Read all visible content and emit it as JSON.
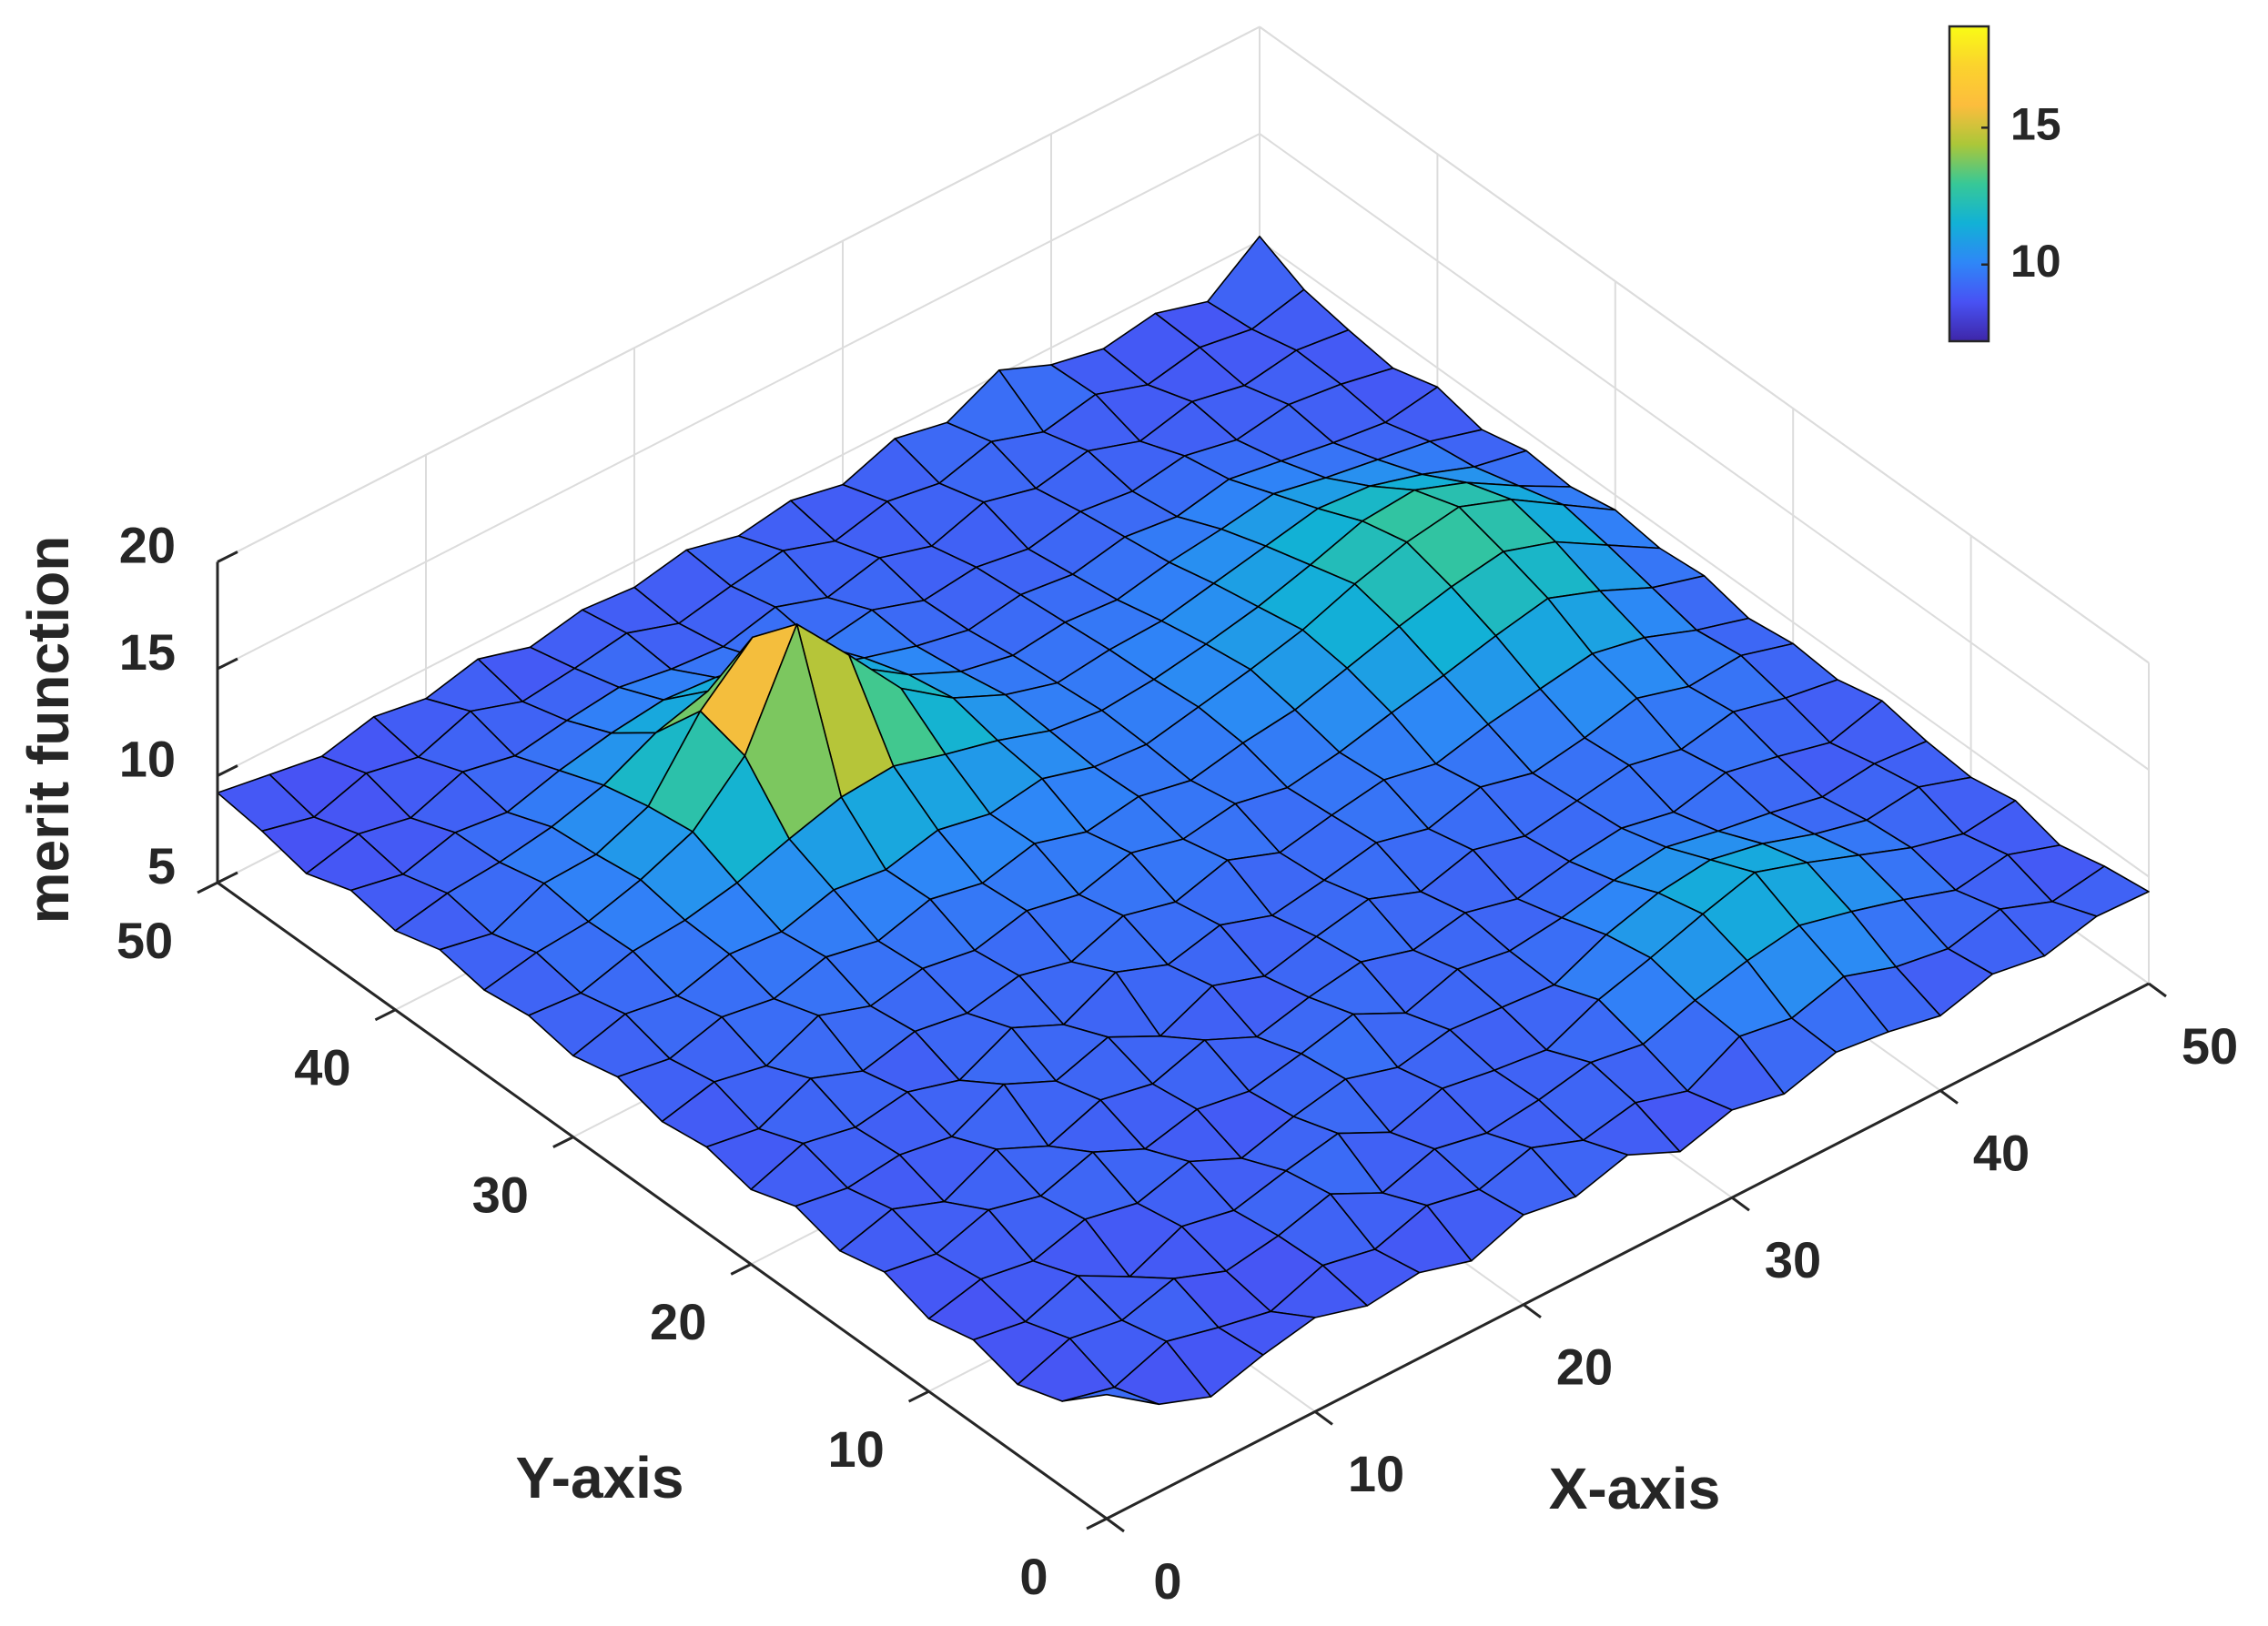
{
  "chart_data": {
    "type": "surface",
    "xlabel": "X-axis",
    "ylabel": "Y-axis",
    "zlabel": "merit function",
    "xlim": [
      0,
      50
    ],
    "ylim": [
      0,
      50
    ],
    "zlim": [
      5,
      20
    ],
    "xticks": [
      0,
      10,
      20,
      30,
      40,
      50
    ],
    "yticks": [
      0,
      10,
      20,
      30,
      40,
      50
    ],
    "zticks": [
      5,
      10,
      15,
      20
    ],
    "grid": true,
    "colormap": "parula",
    "edge_color": "#000000",
    "clim": [
      7.2,
      18.7
    ],
    "colorbar_ticks": [
      10,
      15
    ],
    "colorbar_location": "northeast",
    "x": [
      0,
      2.5,
      5,
      7.5,
      10,
      12.5,
      15,
      17.5,
      20,
      22.5,
      25,
      27.5,
      30,
      32.5,
      35,
      37.5,
      40,
      42.5,
      45,
      47.5,
      50
    ],
    "y": [
      0,
      2.5,
      5,
      7.5,
      10,
      12.5,
      15,
      17.5,
      20,
      22.5,
      25,
      27.5,
      30,
      32.5,
      35,
      37.5,
      40,
      42.5,
      45,
      47.5,
      50
    ],
    "z": [
      [
        10.8,
        9.1,
        8.2,
        8.9,
        9.4,
        8.7,
        9.0,
        8.3,
        9.2,
        8.8,
        9.5,
        8.4,
        9.1,
        8.6,
        9.3,
        9.0,
        8.5,
        9.2,
        8.8,
        9.4,
        9.3
      ],
      [
        9.0,
        8.4,
        9.3,
        8.7,
        8.2,
        9.1,
        8.6,
        9.4,
        8.9,
        9.6,
        8.7,
        9.2,
        8.5,
        9.8,
        9.4,
        10.1,
        9.3,
        8.9,
        9.5,
        8.6,
        9.0
      ],
      [
        8.3,
        9.2,
        8.8,
        9.5,
        8.6,
        9.0,
        9.7,
        8.5,
        9.3,
        8.8,
        9.1,
        9.6,
        9.2,
        10.0,
        10.6,
        11.0,
        10.4,
        9.7,
        8.9,
        9.3,
        8.5
      ],
      [
        8.9,
        8.5,
        9.4,
        8.1,
        9.2,
        8.7,
        9.3,
        9.8,
        8.6,
        9.4,
        9.0,
        8.7,
        9.8,
        10.5,
        11.3,
        12.0,
        11.2,
        10.3,
        9.4,
        8.8,
        9.1
      ],
      [
        8.4,
        9.0,
        8.6,
        9.3,
        8.8,
        9.5,
        8.4,
        9.1,
        9.6,
        8.9,
        9.4,
        9.2,
        9.0,
        10.1,
        10.8,
        11.1,
        10.6,
        9.8,
        9.2,
        9.5,
        8.7
      ],
      [
        9.1,
        8.7,
        9.5,
        8.9,
        9.7,
        8.6,
        9.2,
        8.8,
        9.3,
        9.9,
        8.7,
        9.5,
        9.1,
        9.4,
        9.9,
        10.2,
        9.7,
        9.3,
        8.8,
        9.1,
        8.9
      ],
      [
        8.6,
        9.3,
        8.4,
        9.6,
        8.5,
        9.4,
        8.9,
        9.7,
        8.6,
        9.2,
        9.6,
        8.9,
        9.4,
        8.8,
        9.3,
        9.6,
        9.1,
        9.7,
        9.2,
        8.6,
        9.3
      ],
      [
        9.2,
        8.8,
        9.1,
        8.7,
        9.9,
        8.8,
        9.6,
        8.4,
        9.5,
        8.7,
        9.3,
        9.8,
        8.9,
        9.6,
        9.0,
        9.4,
        9.8,
        9.3,
        9.8,
        9.2,
        8.8
      ],
      [
        8.5,
        9.4,
        8.9,
        9.3,
        8.6,
        9.8,
        8.7,
        9.9,
        9.0,
        9.6,
        8.8,
        9.2,
        9.7,
        9.1,
        9.8,
        9.2,
        9.6,
        10.2,
        9.5,
        9.7,
        9.0
      ],
      [
        9.0,
        8.6,
        9.7,
        8.8,
        9.4,
        9.0,
        9.5,
        8.9,
        9.8,
        9.2,
        9.9,
        9.0,
        9.5,
        9.9,
        9.4,
        10.0,
        10.4,
        10.8,
        10.3,
        9.4,
        8.7
      ],
      [
        8.7,
        9.3,
        8.8,
        9.9,
        9.1,
        9.6,
        9.2,
        9.8,
        9.3,
        10.0,
        9.4,
        9.8,
        9.3,
        9.7,
        10.3,
        10.8,
        11.4,
        11.9,
        11.0,
        9.9,
        9.2
      ],
      [
        9.3,
        8.9,
        9.6,
        9.2,
        9.9,
        9.4,
        10.1,
        9.6,
        10.2,
        9.5,
        9.9,
        9.4,
        9.9,
        10.2,
        10.9,
        11.6,
        12.2,
        12.6,
        11.8,
        10.4,
        9.0
      ],
      [
        8.8,
        9.5,
        9.1,
        9.8,
        9.6,
        10.3,
        10.0,
        10.6,
        10.1,
        10.5,
        9.8,
        9.6,
        10.1,
        10.6,
        11.2,
        12.1,
        12.8,
        13.2,
        12.3,
        10.8,
        9.3
      ],
      [
        9.2,
        9.0,
        9.7,
        9.9,
        10.4,
        11.2,
        11.9,
        12.1,
        11.4,
        10.8,
        10.0,
        9.7,
        9.9,
        10.3,
        10.8,
        11.5,
        12.3,
        12.5,
        11.6,
        10.2,
        8.9
      ],
      [
        8.9,
        9.4,
        9.6,
        10.3,
        11.3,
        13.6,
        18.5,
        15.8,
        13.0,
        11.3,
        10.2,
        9.5,
        9.8,
        9.9,
        10.4,
        10.9,
        11.4,
        11.2,
        10.5,
        9.6,
        9.1
      ],
      [
        9.3,
        8.8,
        9.9,
        10.0,
        11.0,
        14.2,
        16.4,
        15.2,
        12.5,
        10.9,
        9.8,
        9.3,
        9.6,
        9.4,
        9.9,
        10.2,
        10.6,
        10.1,
        9.7,
        9.3,
        8.6
      ],
      [
        8.7,
        9.2,
        9.4,
        9.8,
        10.5,
        11.7,
        12.4,
        11.9,
        11.0,
        10.2,
        9.5,
        9.0,
        9.4,
        9.1,
        9.6,
        9.3,
        9.8,
        9.4,
        9.0,
        8.7,
        9.1
      ],
      [
        9.1,
        8.6,
        9.3,
        9.0,
        9.7,
        10.2,
        10.5,
        10.3,
        9.8,
        9.3,
        9.7,
        8.9,
        9.2,
        8.8,
        9.3,
        9.0,
        9.4,
        8.9,
        9.3,
        9.0,
        8.5
      ],
      [
        8.4,
        9.0,
        8.5,
        9.4,
        8.9,
        9.3,
        9.6,
        9.2,
        9.0,
        9.6,
        8.8,
        9.4,
        8.7,
        9.5,
        8.9,
        9.4,
        8.6,
        9.2,
        8.7,
        9.1,
        8.8
      ],
      [
        8.9,
        8.3,
        9.1,
        8.6,
        9.5,
        8.7,
        9.0,
        9.4,
        8.6,
        9.1,
        9.5,
        8.7,
        9.3,
        8.9,
        9.6,
        8.8,
        9.3,
        8.5,
        9.0,
        8.6,
        9.2
      ],
      [
        9.2,
        8.8,
        8.4,
        9.0,
        8.6,
        9.2,
        8.5,
        9.0,
        8.8,
        9.3,
        8.7,
        9.1,
        8.6,
        9.5,
        9.0,
        10.2,
        9.2,
        8.7,
        9.1,
        8.4,
        10.2
      ]
    ]
  }
}
